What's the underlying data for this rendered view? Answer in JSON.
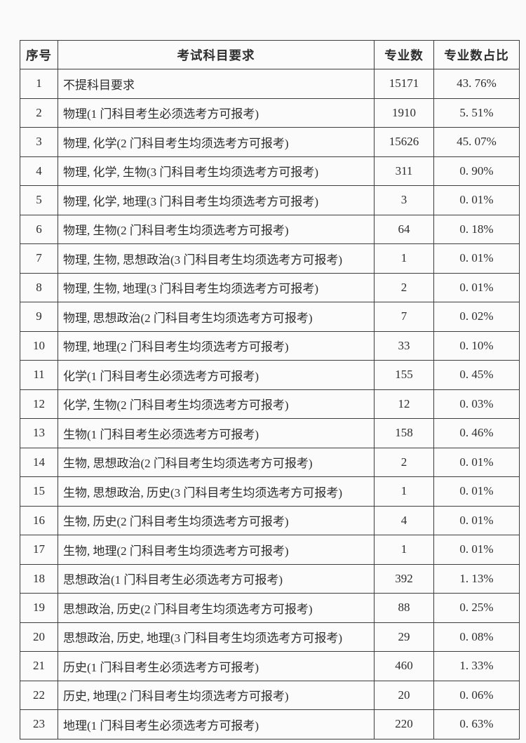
{
  "page": {
    "kind": "scanned-table-document",
    "background_color": "#fafafa",
    "border_color": "#3d3d3d",
    "text_color": "#2d2d2d"
  },
  "table": {
    "headers": {
      "no": "序号",
      "requirement": "考试科目要求",
      "count": "专业数",
      "share": "专业数占比"
    },
    "rows": [
      {
        "no": "1",
        "requirement": "不提科目要求",
        "count": "15171",
        "share": "43. 76%"
      },
      {
        "no": "2",
        "requirement": "物理(1 门科目考生必须选考方可报考)",
        "count": "1910",
        "share": "5. 51%"
      },
      {
        "no": "3",
        "requirement": "物理, 化学(2 门科目考生均须选考方可报考)",
        "count": "15626",
        "share": "45. 07%"
      },
      {
        "no": "4",
        "requirement": "物理, 化学, 生物(3 门科目考生均须选考方可报考)",
        "count": "311",
        "share": "0. 90%"
      },
      {
        "no": "5",
        "requirement": "物理, 化学, 地理(3 门科目考生均须选考方可报考)",
        "count": "3",
        "share": "0. 01%"
      },
      {
        "no": "6",
        "requirement": "物理, 生物(2 门科目考生均须选考方可报考)",
        "count": "64",
        "share": "0. 18%"
      },
      {
        "no": "7",
        "requirement": "物理, 生物, 思想政治(3 门科目考生均须选考方可报考)",
        "count": "1",
        "share": "0. 01%"
      },
      {
        "no": "8",
        "requirement": "物理, 生物, 地理(3 门科目考生均须选考方可报考)",
        "count": "2",
        "share": "0. 01%"
      },
      {
        "no": "9",
        "requirement": "物理, 思想政治(2 门科目考生均须选考方可报考)",
        "count": "7",
        "share": "0. 02%"
      },
      {
        "no": "10",
        "requirement": "物理, 地理(2 门科目考生均须选考方可报考)",
        "count": "33",
        "share": "0. 10%"
      },
      {
        "no": "11",
        "requirement": "化学(1 门科目考生必须选考方可报考)",
        "count": "155",
        "share": "0. 45%"
      },
      {
        "no": "12",
        "requirement": "化学, 生物(2 门科目考生均须选考方可报考)",
        "count": "12",
        "share": "0. 03%"
      },
      {
        "no": "13",
        "requirement": "生物(1 门科目考生必须选考方可报考)",
        "count": "158",
        "share": "0. 46%"
      },
      {
        "no": "14",
        "requirement": "生物, 思想政治(2 门科目考生均须选考方可报考)",
        "count": "2",
        "share": "0. 01%"
      },
      {
        "no": "15",
        "requirement": "生物, 思想政治, 历史(3 门科目考生均须选考方可报考)",
        "count": "1",
        "share": "0. 01%"
      },
      {
        "no": "16",
        "requirement": "生物, 历史(2 门科目考生均须选考方可报考)",
        "count": "4",
        "share": "0. 01%"
      },
      {
        "no": "17",
        "requirement": "生物, 地理(2 门科目考生均须选考方可报考)",
        "count": "1",
        "share": "0. 01%"
      },
      {
        "no": "18",
        "requirement": "思想政治(1 门科目考生必须选考方可报考)",
        "count": "392",
        "share": "1. 13%"
      },
      {
        "no": "19",
        "requirement": "思想政治, 历史(2 门科目考生均须选考方可报考)",
        "count": "88",
        "share": "0. 25%"
      },
      {
        "no": "20",
        "requirement": "思想政治, 历史, 地理(3 门科目考生均须选考方可报考)",
        "count": "29",
        "share": "0. 08%"
      },
      {
        "no": "21",
        "requirement": "历史(1 门科目考生必须选考方可报考)",
        "count": "460",
        "share": "1. 33%"
      },
      {
        "no": "22",
        "requirement": "历史, 地理(2 门科目考生均须选考方可报考)",
        "count": "20",
        "share": "0. 06%"
      },
      {
        "no": "23",
        "requirement": "地理(1 门科目考生必须选考方可报考)",
        "count": "220",
        "share": "0. 63%"
      }
    ]
  }
}
